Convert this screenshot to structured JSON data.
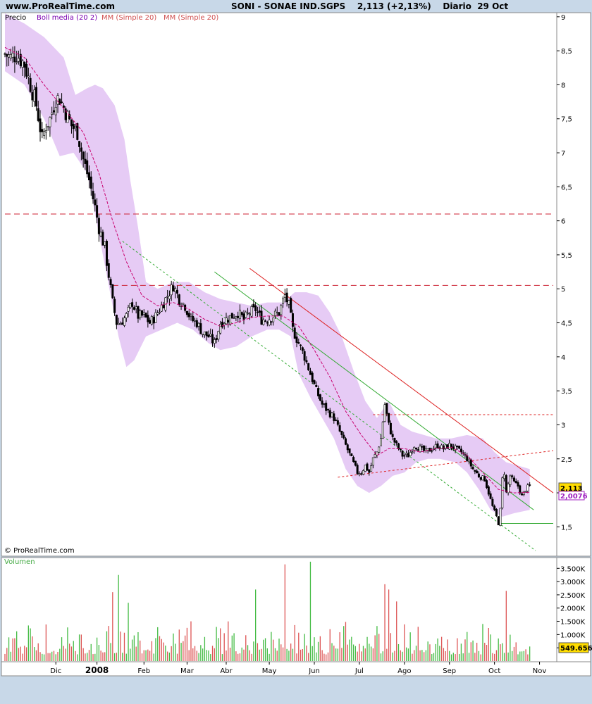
{
  "header": {
    "site": "www.ProRealTime.com",
    "title": "SONI - SONAE IND.SGPS    2,113 (+2,13%)    Diario  29 Oct"
  },
  "copyright": "© ProRealTime.com",
  "legend": {
    "price": "Precio",
    "bollinger": "Boll media (20 2)",
    "ma1": "MM (Simple 20)",
    "ma2": "MM (Simple 20)"
  },
  "volume_label": "Volumen",
  "badges": {
    "last_price": "2,113",
    "ma_value": "2,0076",
    "last_volume": "549.656"
  },
  "colors": {
    "background": "#c8d8e8",
    "panel": "#ffffff",
    "bollinger_band": "#e6cbf5",
    "moving_average": "#c8006e",
    "resistance": "#cc2233",
    "trend_green": "#33aa33",
    "volume_up": "#44bb44",
    "volume_down": "#dd5555",
    "badge": "#ffdd00"
  },
  "chart_data": [
    {
      "type": "line",
      "subtype": "candlestick",
      "title": "SONI - SONAE IND.SGPS",
      "ylim": [
        1.1,
        9.05
      ],
      "xlim": [
        0,
        280
      ],
      "y_ticks": [
        "9",
        "8,5",
        "8",
        "7,5",
        "7",
        "6,5",
        "6",
        "5,5",
        "5",
        "4,5",
        "4",
        "3,5",
        "3",
        "2,5",
        "2",
        "1,5"
      ],
      "y_tick_values": [
        9,
        8.5,
        8,
        7.5,
        7,
        6.5,
        6,
        5.5,
        5,
        4.5,
        4,
        3.5,
        3,
        2.5,
        2,
        1.5
      ],
      "x_ticks": [
        {
          "label": "Dic",
          "x": 26
        },
        {
          "label": "2008",
          "x": 47,
          "bold": true
        },
        {
          "label": "Feb",
          "x": 71
        },
        {
          "label": "Mar",
          "x": 93
        },
        {
          "label": "Abr",
          "x": 113
        },
        {
          "label": "May",
          "x": 135
        },
        {
          "label": "Jun",
          "x": 158
        },
        {
          "label": "Jul",
          "x": 181
        },
        {
          "label": "Ago",
          "x": 204
        },
        {
          "label": "Sep",
          "x": 227
        },
        {
          "label": "Oct",
          "x": 250
        },
        {
          "label": "Nov",
          "x": 273
        }
      ],
      "close_anchors": [
        [
          0,
          8.45
        ],
        [
          3,
          8.4
        ],
        [
          6,
          8.45
        ],
        [
          10,
          8.3
        ],
        [
          13,
          8.0
        ],
        [
          16,
          7.7
        ],
        [
          19,
          7.2
        ],
        [
          21,
          7.4
        ],
        [
          23,
          7.5
        ],
        [
          26,
          7.8
        ],
        [
          28,
          7.8
        ],
        [
          31,
          7.6
        ],
        [
          34,
          7.4
        ],
        [
          37,
          7.3
        ],
        [
          40,
          6.9
        ],
        [
          43,
          6.6
        ],
        [
          46,
          6.2
        ],
        [
          48,
          5.9
        ],
        [
          51,
          5.6
        ],
        [
          53,
          5.2
        ],
        [
          55,
          4.8
        ],
        [
          57,
          4.5
        ],
        [
          59,
          4.5
        ],
        [
          62,
          4.6
        ],
        [
          65,
          4.8
        ],
        [
          68,
          4.6
        ],
        [
          71,
          4.6
        ],
        [
          74,
          4.5
        ],
        [
          77,
          4.6
        ],
        [
          80,
          4.75
        ],
        [
          83,
          4.9
        ],
        [
          86,
          5.05
        ],
        [
          89,
          4.85
        ],
        [
          92,
          4.75
        ],
        [
          95,
          4.55
        ],
        [
          98,
          4.5
        ],
        [
          101,
          4.35
        ],
        [
          104,
          4.3
        ],
        [
          107,
          4.2
        ],
        [
          110,
          4.5
        ],
        [
          113,
          4.55
        ],
        [
          116,
          4.6
        ],
        [
          119,
          4.65
        ],
        [
          122,
          4.55
        ],
        [
          125,
          4.65
        ],
        [
          128,
          4.7
        ],
        [
          131,
          4.55
        ],
        [
          134,
          4.55
        ],
        [
          137,
          4.6
        ],
        [
          140,
          4.65
        ],
        [
          143,
          4.9
        ],
        [
          145,
          4.75
        ],
        [
          147,
          4.4
        ],
        [
          150,
          4.2
        ],
        [
          153,
          4.0
        ],
        [
          156,
          3.75
        ],
        [
          159,
          3.5
        ],
        [
          162,
          3.3
        ],
        [
          165,
          3.2
        ],
        [
          168,
          3.1
        ],
        [
          171,
          2.9
        ],
        [
          174,
          2.7
        ],
        [
          177,
          2.5
        ],
        [
          180,
          2.3
        ],
        [
          182,
          2.3
        ],
        [
          184,
          2.4
        ],
        [
          186,
          2.3
        ],
        [
          188,
          2.5
        ],
        [
          190,
          2.6
        ],
        [
          192,
          2.8
        ],
        [
          194,
          3.3
        ],
        [
          196,
          3.0
        ],
        [
          198,
          2.8
        ],
        [
          200,
          2.7
        ],
        [
          203,
          2.55
        ],
        [
          206,
          2.55
        ],
        [
          209,
          2.7
        ],
        [
          212,
          2.65
        ],
        [
          215,
          2.6
        ],
        [
          218,
          2.65
        ],
        [
          221,
          2.7
        ],
        [
          224,
          2.65
        ],
        [
          227,
          2.7
        ],
        [
          230,
          2.65
        ],
        [
          233,
          2.6
        ],
        [
          236,
          2.5
        ],
        [
          239,
          2.35
        ],
        [
          242,
          2.25
        ],
        [
          245,
          2.2
        ],
        [
          247,
          2.0
        ],
        [
          249,
          1.8
        ],
        [
          251,
          1.65
        ],
        [
          252,
          1.55
        ],
        [
          253,
          1.75
        ],
        [
          254,
          2.2
        ],
        [
          255,
          2.3
        ],
        [
          256,
          2.0
        ],
        [
          258,
          2.25
        ],
        [
          260,
          2.15
        ],
        [
          262,
          2.1
        ],
        [
          264,
          1.95
        ],
        [
          266,
          2.05
        ],
        [
          268,
          2.113
        ]
      ],
      "moving_average": [
        [
          0,
          8.55
        ],
        [
          10,
          8.4
        ],
        [
          20,
          8.0
        ],
        [
          30,
          7.65
        ],
        [
          40,
          7.3
        ],
        [
          48,
          6.7
        ],
        [
          55,
          6.0
        ],
        [
          62,
          5.4
        ],
        [
          70,
          4.9
        ],
        [
          78,
          4.75
        ],
        [
          86,
          4.8
        ],
        [
          94,
          4.7
        ],
        [
          102,
          4.55
        ],
        [
          110,
          4.45
        ],
        [
          118,
          4.5
        ],
        [
          126,
          4.58
        ],
        [
          134,
          4.6
        ],
        [
          142,
          4.6
        ],
        [
          150,
          4.45
        ],
        [
          158,
          4.1
        ],
        [
          166,
          3.7
        ],
        [
          174,
          3.2
        ],
        [
          182,
          2.85
        ],
        [
          190,
          2.55
        ],
        [
          196,
          2.65
        ],
        [
          204,
          2.65
        ],
        [
          212,
          2.6
        ],
        [
          220,
          2.65
        ],
        [
          228,
          2.67
        ],
        [
          236,
          2.55
        ],
        [
          244,
          2.3
        ],
        [
          252,
          2.05
        ],
        [
          260,
          2.0
        ],
        [
          268,
          2.0076
        ]
      ],
      "bollinger_upper": [
        [
          0,
          9.05
        ],
        [
          10,
          8.9
        ],
        [
          20,
          8.7
        ],
        [
          30,
          8.4
        ],
        [
          36,
          7.85
        ],
        [
          42,
          7.95
        ],
        [
          46,
          8.0
        ],
        [
          50,
          7.95
        ],
        [
          56,
          7.7
        ],
        [
          61,
          7.2
        ],
        [
          64,
          6.6
        ],
        [
          68,
          5.9
        ],
        [
          72,
          5.1
        ],
        [
          78,
          5.0
        ],
        [
          86,
          5.1
        ],
        [
          94,
          5.1
        ],
        [
          102,
          4.95
        ],
        [
          110,
          4.85
        ],
        [
          118,
          4.8
        ],
        [
          126,
          4.75
        ],
        [
          134,
          4.8
        ],
        [
          142,
          4.8
        ],
        [
          148,
          4.95
        ],
        [
          154,
          4.95
        ],
        [
          160,
          4.9
        ],
        [
          166,
          4.65
        ],
        [
          172,
          4.3
        ],
        [
          178,
          3.8
        ],
        [
          184,
          3.35
        ],
        [
          190,
          3.1
        ],
        [
          196,
          3.35
        ],
        [
          202,
          3.0
        ],
        [
          208,
          2.9
        ],
        [
          214,
          2.85
        ],
        [
          220,
          2.8
        ],
        [
          228,
          2.8
        ],
        [
          236,
          2.85
        ],
        [
          244,
          2.8
        ],
        [
          250,
          2.6
        ],
        [
          256,
          2.45
        ],
        [
          262,
          2.4
        ],
        [
          268,
          2.35
        ]
      ],
      "bollinger_lower": [
        [
          0,
          8.2
        ],
        [
          10,
          8.0
        ],
        [
          20,
          7.5
        ],
        [
          28,
          6.95
        ],
        [
          35,
          7.0
        ],
        [
          42,
          6.7
        ],
        [
          48,
          5.8
        ],
        [
          54,
          4.9
        ],
        [
          58,
          4.3
        ],
        [
          62,
          3.85
        ],
        [
          66,
          3.95
        ],
        [
          72,
          4.3
        ],
        [
          80,
          4.4
        ],
        [
          88,
          4.5
        ],
        [
          96,
          4.4
        ],
        [
          104,
          4.2
        ],
        [
          110,
          4.1
        ],
        [
          118,
          4.15
        ],
        [
          126,
          4.3
        ],
        [
          134,
          4.4
        ],
        [
          140,
          4.4
        ],
        [
          146,
          4.3
        ],
        [
          150,
          3.75
        ],
        [
          156,
          3.4
        ],
        [
          162,
          3.1
        ],
        [
          168,
          2.8
        ],
        [
          174,
          2.35
        ],
        [
          180,
          2.1
        ],
        [
          186,
          2.0
        ],
        [
          192,
          2.1
        ],
        [
          198,
          2.25
        ],
        [
          204,
          2.3
        ],
        [
          210,
          2.45
        ],
        [
          216,
          2.5
        ],
        [
          222,
          2.5
        ],
        [
          230,
          2.45
        ],
        [
          236,
          2.3
        ],
        [
          242,
          2.05
        ],
        [
          248,
          1.75
        ],
        [
          254,
          1.65
        ],
        [
          260,
          1.7
        ],
        [
          268,
          1.75
        ]
      ],
      "trendlines": [
        {
          "name": "resistance-red",
          "color": "#dd2222",
          "dash": false,
          "points": [
            [
              125,
              5.3
            ],
            [
              280,
              2.0
            ]
          ]
        },
        {
          "name": "channel-green-upper",
          "color": "#33aa33",
          "dash": false,
          "points": [
            [
              107,
              5.25
            ],
            [
              270,
              1.75
            ]
          ]
        },
        {
          "name": "channel-green-lower",
          "color": "#33aa33",
          "dash": true,
          "points": [
            [
              60,
              5.7
            ],
            [
              271,
              1.15
            ]
          ]
        },
        {
          "name": "support-green",
          "color": "#33aa33",
          "dash": false,
          "points": [
            [
              253,
              1.55
            ],
            [
              280,
              1.55
            ]
          ]
        },
        {
          "name": "rising-red-dotted",
          "color": "#dd2222",
          "dash": true,
          "points": [
            [
              170,
              2.23
            ],
            [
              280,
              2.62
            ]
          ]
        },
        {
          "name": "horizontal-red-3.15",
          "color": "#dd2222",
          "dash": true,
          "points": [
            [
              188,
              3.15
            ],
            [
              280,
              3.15
            ]
          ]
        },
        {
          "name": "horizontal-red-6.1",
          "color": "#cc2233",
          "dash": true,
          "points": [
            [
              0,
              6.1
            ],
            [
              280,
              6.1
            ]
          ]
        },
        {
          "name": "horizontal-red-5.05",
          "color": "#cc2233",
          "dash": true,
          "points": [
            [
              55,
              5.05
            ],
            [
              280,
              5.05
            ]
          ]
        }
      ]
    },
    {
      "type": "bar",
      "title": "Volumen",
      "ylim": [
        0,
        3800000
      ],
      "y_ticks": [
        "3.500K",
        "3.000K",
        "2.500K",
        "2.000K",
        "1.500K",
        "1.000K",
        "500K"
      ],
      "y_tick_values": [
        3500000,
        3000000,
        2500000,
        2000000,
        1500000,
        1000000,
        500000
      ],
      "notable_bars": [
        {
          "x": 55,
          "value": 2600000
        },
        {
          "x": 58,
          "value": 3250000
        },
        {
          "x": 63,
          "value": 2200000
        },
        {
          "x": 95,
          "value": 1500000
        },
        {
          "x": 128,
          "value": 2700000
        },
        {
          "x": 143,
          "value": 3650000
        },
        {
          "x": 156,
          "value": 3750000
        },
        {
          "x": 194,
          "value": 2900000
        },
        {
          "x": 196,
          "value": 2700000
        },
        {
          "x": 200,
          "value": 2250000
        },
        {
          "x": 256,
          "value": 2650000
        },
        {
          "x": 268,
          "value": 549656
        }
      ]
    }
  ]
}
